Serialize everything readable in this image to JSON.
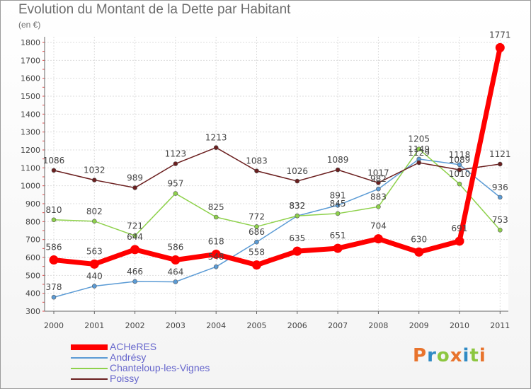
{
  "header": {
    "title": "Evolution du Montant de la Dette par Habitant",
    "unit": "(en €)"
  },
  "logo": {
    "text": "Proxiti",
    "colors": [
      "#e8732c",
      "#2f8ac4",
      "#8cc63f",
      "#e8732c",
      "#2f8ac4",
      "#8cc63f",
      "#e8732c"
    ]
  },
  "chart_data": {
    "type": "line",
    "title": "Evolution du Montant de la Dette par Habitant",
    "ylabel": "(en €)",
    "ylim": [
      300,
      1800
    ],
    "yticks": [
      300,
      400,
      500,
      600,
      700,
      800,
      900,
      1000,
      1100,
      1200,
      1300,
      1400,
      1500,
      1600,
      1700,
      1800
    ],
    "x": [
      "2000",
      "2001",
      "2002",
      "2003",
      "2004",
      "2005",
      "2006",
      "2007",
      "2008",
      "2009",
      "2010",
      "2011"
    ],
    "grid": true,
    "legend_position": "bottom-left",
    "series": [
      {
        "name": "ACHeRES",
        "color": "#ff0000",
        "values": [
          586,
          563,
          644,
          586,
          618,
          558,
          635,
          651,
          704,
          630,
          691,
          1771
        ],
        "labels": [
          "586",
          "563",
          "644",
          "586",
          "618",
          "558",
          "635",
          "651",
          "704",
          "630",
          "691",
          "1771"
        ]
      },
      {
        "name": "Andrésy",
        "color": "#5b9bd5",
        "values": [
          378,
          440,
          466,
          464,
          548,
          686,
          832,
          891,
          982,
          1149,
          1118,
          936
        ],
        "labels": [
          "378",
          "440",
          "466",
          "464",
          "548",
          "686",
          "832",
          "891",
          "982",
          "1149",
          "1118",
          "936"
        ]
      },
      {
        "name": "Chanteloup-les-Vignes",
        "color": "#8ed14b",
        "values": [
          810,
          802,
          721,
          957,
          825,
          772,
          832,
          845,
          883,
          1205,
          1010,
          753
        ],
        "labels": [
          "810",
          "802",
          "721",
          "957",
          "825",
          "772",
          "832",
          "845",
          "883",
          "1205",
          "1010",
          "753"
        ]
      },
      {
        "name": "Poissy",
        "color": "#6b1f1f",
        "values": [
          1086,
          1032,
          989,
          1123,
          1213,
          1083,
          1026,
          1089,
          1017,
          1129,
          1089,
          1121
        ],
        "labels": [
          "1086",
          "1032",
          "989",
          "1123",
          "1213",
          "1083",
          "1026",
          "1089",
          "1017",
          "1129",
          "1089",
          "1121"
        ]
      }
    ]
  }
}
